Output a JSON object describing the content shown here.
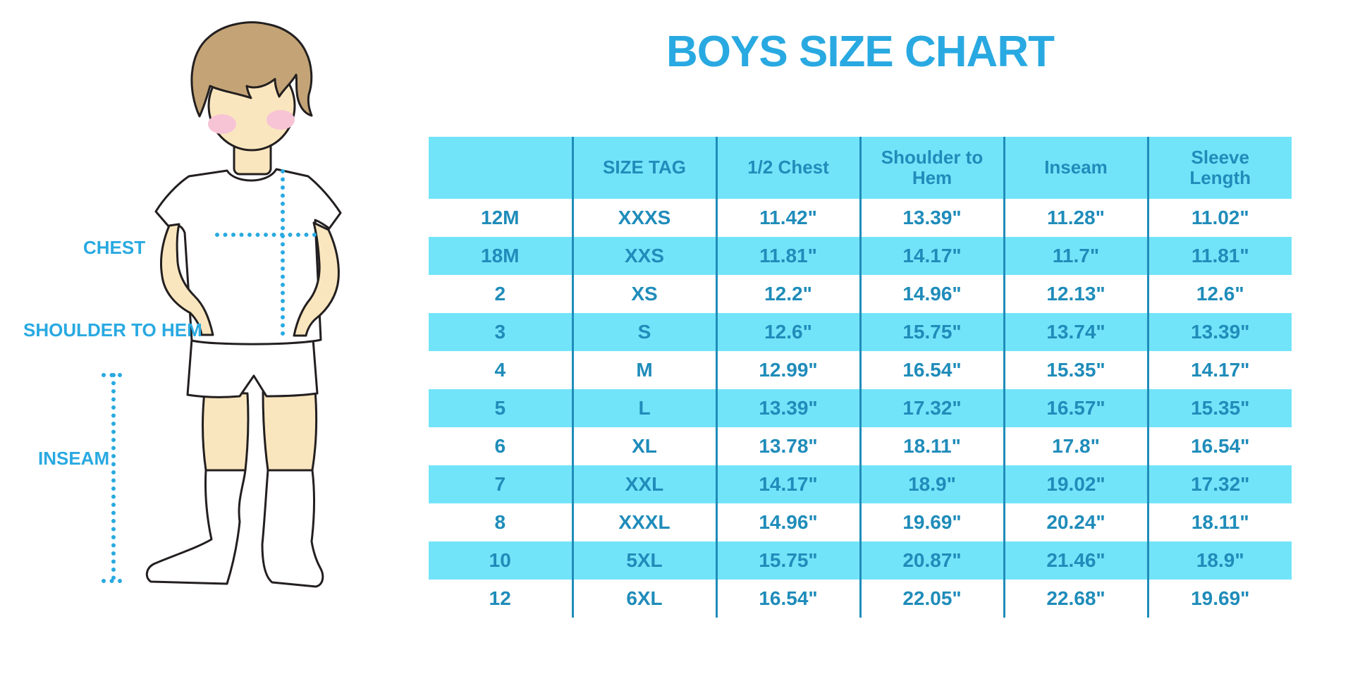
{
  "title": "BOYS SIZE CHART",
  "diagram": {
    "labels": {
      "chest": "CHEST",
      "shoulder_to_hem": "SHOULDER TO HEM",
      "inseam": "INSEAM"
    }
  },
  "chart_data": {
    "type": "table",
    "title": "BOYS SIZE CHART",
    "columns": [
      "",
      "SIZE TAG",
      "1/2 Chest",
      "Shoulder to Hem",
      "Inseam",
      "Sleeve Length"
    ],
    "rows": [
      [
        "12M",
        "XXXS",
        "11.42\"",
        "13.39\"",
        "11.28\"",
        "11.02\""
      ],
      [
        "18M",
        "XXS",
        "11.81\"",
        "14.17\"",
        "11.7\"",
        "11.81\""
      ],
      [
        "2",
        "XS",
        "12.2\"",
        "14.96\"",
        "12.13\"",
        "12.6\""
      ],
      [
        "3",
        "S",
        "12.6\"",
        "15.75\"",
        "13.74\"",
        "13.39\""
      ],
      [
        "4",
        "M",
        "12.99\"",
        "16.54\"",
        "15.35\"",
        "14.17\""
      ],
      [
        "5",
        "L",
        "13.39\"",
        "17.32\"",
        "16.57\"",
        "15.35\""
      ],
      [
        "6",
        "XL",
        "13.78\"",
        "18.11\"",
        "17.8\"",
        "16.54\""
      ],
      [
        "7",
        "XXL",
        "14.17\"",
        "18.9\"",
        "19.02\"",
        "17.32\""
      ],
      [
        "8",
        "XXXL",
        "14.96\"",
        "19.69\"",
        "20.24\"",
        "18.11\""
      ],
      [
        "10",
        "5XL",
        "15.75\"",
        "20.87\"",
        "21.46\"",
        "18.9\""
      ],
      [
        "12",
        "6XL",
        "16.54\"",
        "22.05\"",
        "22.68\"",
        "19.69\""
      ]
    ],
    "units": "inches",
    "layout_hints": {
      "header_fill": "#72E4F9",
      "row_striping": [
        "#FFFFFF",
        "#72E4F9"
      ],
      "grid": "vertical-lines-only"
    }
  },
  "colors": {
    "accent_blue": "#29A9E1",
    "table_fill_cyan": "#72E4F9",
    "table_text_blue": "#1F8CBA",
    "skin": "#FAE6BE",
    "hair": "#C4A476",
    "blush": "#F7C4D5",
    "outline": "#231F20"
  }
}
